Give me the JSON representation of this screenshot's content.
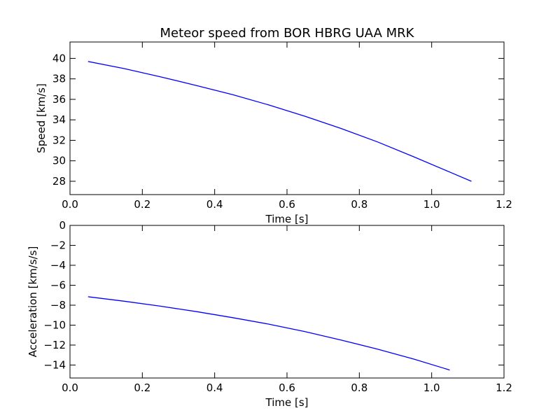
{
  "figure": {
    "background": "#ffffff",
    "line_color": "#0000ff"
  },
  "chart_data": [
    {
      "type": "line",
      "title": "Meteor speed from  BOR HBRG UAA MRK",
      "xlabel": "Time [s]",
      "ylabel": "Speed [km/s]",
      "xlim": [
        0.0,
        1.2
      ],
      "ylim": [
        26.7,
        41.6
      ],
      "xticks": [
        "0.0",
        "0.2",
        "0.4",
        "0.6",
        "0.8",
        "1.0",
        "1.2"
      ],
      "yticks": [
        "28",
        "30",
        "32",
        "34",
        "36",
        "38",
        "40"
      ],
      "series": [
        {
          "x": [
            0.05,
            0.15,
            0.25,
            0.35,
            0.45,
            0.55,
            0.65,
            0.75,
            0.85,
            0.95,
            1.05,
            1.11
          ],
          "y": [
            39.7,
            39.0,
            38.2,
            37.35,
            36.45,
            35.45,
            34.35,
            33.15,
            31.85,
            30.4,
            28.9,
            28.0
          ]
        }
      ]
    },
    {
      "type": "line",
      "title": "",
      "xlabel": "Time [s]",
      "ylabel": "Acceleration [km/s/s]",
      "xlim": [
        0.0,
        1.2
      ],
      "ylim": [
        -15.3,
        0.0
      ],
      "xticks": [
        "0.0",
        "0.2",
        "0.4",
        "0.6",
        "0.8",
        "1.0",
        "1.2"
      ],
      "yticks": [
        "0",
        "−2",
        "−4",
        "−6",
        "−8",
        "−10",
        "−12",
        "−14"
      ],
      "series": [
        {
          "x": [
            0.05,
            0.15,
            0.25,
            0.35,
            0.45,
            0.55,
            0.65,
            0.75,
            0.85,
            0.95,
            1.05
          ],
          "y": [
            -7.15,
            -7.6,
            -8.1,
            -8.65,
            -9.25,
            -9.9,
            -10.65,
            -11.5,
            -12.4,
            -13.4,
            -14.5
          ]
        }
      ]
    }
  ]
}
